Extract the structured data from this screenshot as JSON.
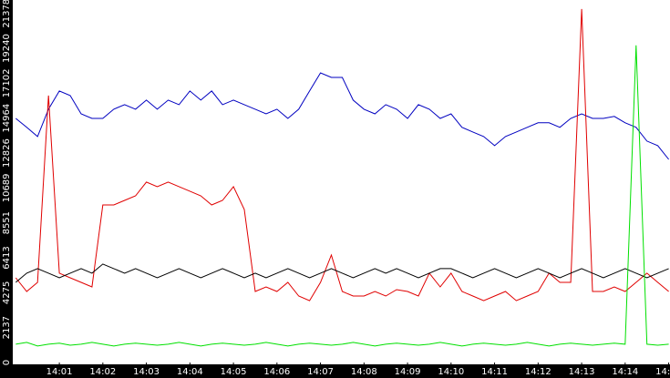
{
  "chart_data": {
    "type": "line",
    "x": [
      0,
      0.25,
      0.5,
      0.75,
      1,
      1.25,
      1.5,
      1.75,
      2,
      2.25,
      2.5,
      2.75,
      3,
      3.25,
      3.5,
      3.75,
      4,
      4.25,
      4.5,
      4.75,
      5,
      5.25,
      5.5,
      5.75,
      6,
      6.25,
      6.5,
      6.75,
      7,
      7.25,
      7.5,
      7.75,
      8,
      8.25,
      8.5,
      8.75,
      9,
      9.25,
      9.5,
      9.75,
      10,
      10.25,
      10.5,
      10.75,
      11,
      11.25,
      11.5,
      11.75,
      12,
      12.25,
      12.5,
      12.75,
      13,
      13.25,
      13.5,
      13.75,
      14,
      14.25,
      14.5,
      14.75,
      15
    ],
    "xlim": [
      -0.07,
      15.03
    ],
    "xticks": [
      {
        "value": 1,
        "label": "14:01"
      },
      {
        "value": 2,
        "label": "14:02"
      },
      {
        "value": 3,
        "label": "14:03"
      },
      {
        "value": 4,
        "label": "14:04"
      },
      {
        "value": 5,
        "label": "14:05"
      },
      {
        "value": 6,
        "label": "14:06"
      },
      {
        "value": 7,
        "label": "14:07"
      },
      {
        "value": 8,
        "label": "14:08"
      },
      {
        "value": 9,
        "label": "14:09"
      },
      {
        "value": 10,
        "label": "14:10"
      },
      {
        "value": 11,
        "label": "14:11"
      },
      {
        "value": 12,
        "label": "14:12"
      },
      {
        "value": 13,
        "label": "14:13"
      },
      {
        "value": 14,
        "label": "14:14"
      },
      {
        "value": 15,
        "label": "14:15"
      }
    ],
    "ylim": [
      0,
      22200
    ],
    "yticks": [
      0,
      2137,
      4275,
      6413,
      8551,
      10689,
      12826,
      14964,
      17102,
      19240,
      21378
    ],
    "series": [
      {
        "color": "#0000c0",
        "values": [
          14950,
          14400,
          13840,
          15510,
          16630,
          16350,
          15230,
          14950,
          14950,
          15510,
          15790,
          15510,
          16070,
          15510,
          16070,
          15790,
          16630,
          16070,
          16630,
          15790,
          16070,
          15790,
          15510,
          15230,
          15510,
          14950,
          15510,
          16630,
          17740,
          17460,
          17460,
          16070,
          15510,
          15230,
          15790,
          15510,
          14950,
          15790,
          15510,
          14950,
          15230,
          14400,
          14120,
          13840,
          13280,
          13840,
          14120,
          14400,
          14680,
          14680,
          14400,
          14950,
          15230,
          14950,
          14950,
          15070,
          14680,
          14400,
          13560,
          13280,
          12440
        ]
      },
      {
        "color": "#e00000",
        "values": [
          5190,
          4350,
          4910,
          16350,
          5470,
          5190,
          4910,
          4630,
          9650,
          9650,
          9930,
          10210,
          11050,
          10770,
          11050,
          10770,
          10490,
          10210,
          9650,
          9930,
          10770,
          9370,
          4350,
          4630,
          4350,
          4910,
          4070,
          3790,
          4910,
          6580,
          4350,
          4070,
          4070,
          4350,
          4070,
          4460,
          4350,
          4070,
          5470,
          4630,
          5470,
          4350,
          4070,
          3790,
          4070,
          4350,
          3790,
          4070,
          4350,
          5470,
          4910,
          4910,
          21650,
          4350,
          4350,
          4630,
          4350,
          4910,
          5470,
          4910,
          4350
        ]
      },
      {
        "color": "#000000",
        "values": [
          4910,
          5470,
          5750,
          5470,
          5190,
          5470,
          5750,
          5470,
          6030,
          5750,
          5470,
          5750,
          5470,
          5190,
          5470,
          5750,
          5470,
          5190,
          5470,
          5750,
          5470,
          5190,
          5470,
          5190,
          5470,
          5750,
          5470,
          5190,
          5470,
          5750,
          5470,
          5190,
          5470,
          5750,
          5470,
          5750,
          5470,
          5190,
          5470,
          5750,
          5750,
          5470,
          5190,
          5470,
          5750,
          5470,
          5190,
          5470,
          5750,
          5470,
          5190,
          5470,
          5750,
          5470,
          5190,
          5470,
          5750,
          5470,
          5190,
          5470,
          5750
        ]
      },
      {
        "color": "#00e000",
        "values": [
          1120,
          1230,
          1010,
          1120,
          1180,
          1060,
          1120,
          1230,
          1120,
          1010,
          1120,
          1180,
          1120,
          1060,
          1120,
          1230,
          1120,
          1010,
          1120,
          1180,
          1120,
          1060,
          1120,
          1230,
          1120,
          1010,
          1120,
          1180,
          1120,
          1060,
          1120,
          1230,
          1120,
          1010,
          1120,
          1180,
          1120,
          1060,
          1120,
          1230,
          1120,
          1010,
          1120,
          1180,
          1120,
          1060,
          1120,
          1230,
          1120,
          1010,
          1120,
          1180,
          1120,
          1060,
          1120,
          1180,
          1120,
          19420,
          1120,
          1060,
          1120
        ]
      }
    ]
  }
}
